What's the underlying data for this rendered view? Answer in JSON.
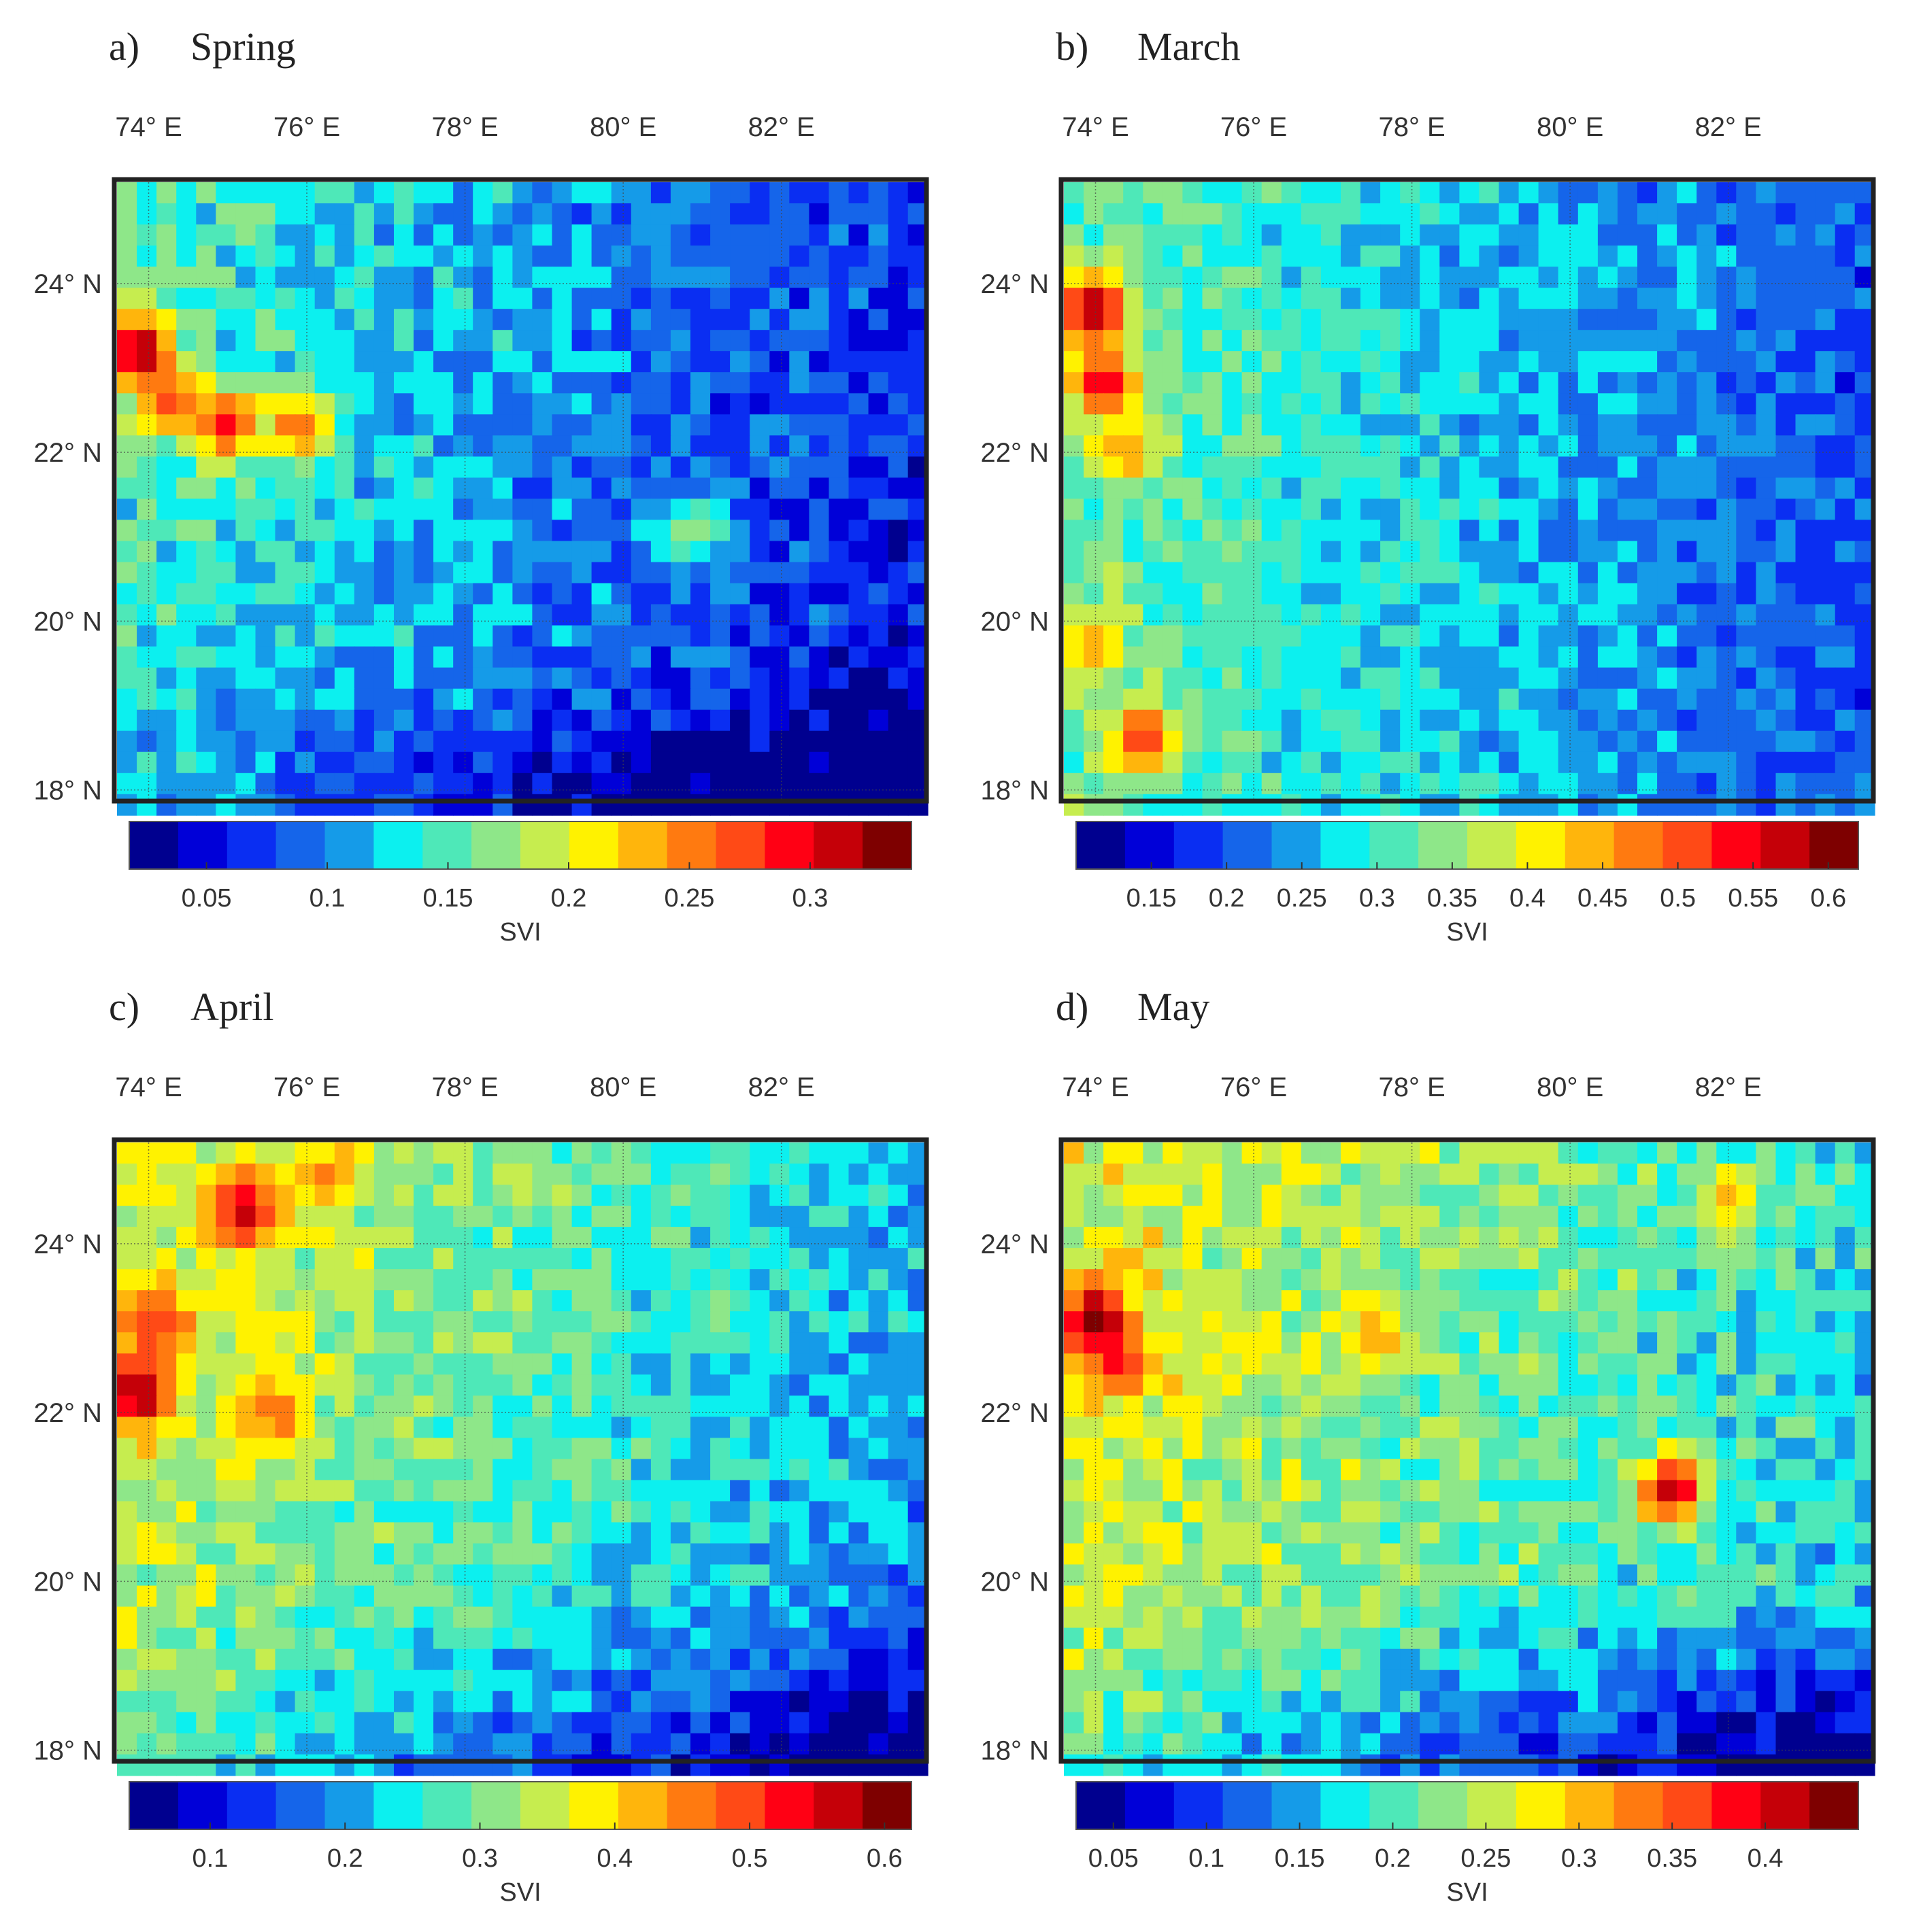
{
  "figure": {
    "colorbar_colors": [
      "#00008f",
      "#0000d8",
      "#0a2ef2",
      "#1565ea",
      "#159be8",
      "#0cf0ef",
      "#4ee8b8",
      "#8ee789",
      "#c6ed4f",
      "#fff200",
      "#ffb50c",
      "#ff7a10",
      "#ff4a16",
      "#ff0014",
      "#c50008",
      "#7e0000"
    ]
  },
  "chart_data": [
    {
      "type": "heatmap",
      "panel_label": "a)",
      "title": "Spring",
      "x_ticks": [
        "74° E",
        "76° E",
        "78° E",
        "80° E",
        "82° E"
      ],
      "y_ticks": [
        "24° N",
        "22° N",
        "20° N",
        "18° N"
      ],
      "x_tick_values": [
        74,
        76,
        78,
        80,
        82
      ],
      "y_tick_values": [
        24,
        22,
        20,
        18
      ],
      "xlim": [
        73.6,
        83.8
      ],
      "ylim": [
        17.9,
        25.2
      ],
      "colorbar": {
        "label": "SVI",
        "ticks": [
          "0.05",
          "0.1",
          "0.15",
          "0.2",
          "0.25",
          "0.3"
        ],
        "tick_values": [
          0.05,
          0.1,
          0.15,
          0.2,
          0.25,
          0.3
        ],
        "range": [
          0.018,
          0.342
        ]
      },
      "grid_resolution_deg": 0.25,
      "field": {
        "base_west": 0.14,
        "base_east": 0.055,
        "north_bonus": 0.015,
        "south_penalty": 0.05,
        "noise": 0.03
      },
      "hotspots": [
        {
          "lon": 73.9,
          "lat": 23.2,
          "value": 0.34
        },
        {
          "lon": 74.3,
          "lat": 22.6,
          "value": 0.27
        },
        {
          "lon": 75.0,
          "lat": 22.3,
          "value": 0.29
        },
        {
          "lon": 75.9,
          "lat": 22.3,
          "value": 0.26
        },
        {
          "lon": 80.9,
          "lat": 21.1,
          "value": 0.18
        }
      ]
    },
    {
      "type": "heatmap",
      "panel_label": "b)",
      "title": "March",
      "x_ticks": [
        "74° E",
        "76° E",
        "78° E",
        "80° E",
        "82° E"
      ],
      "y_ticks": [
        "24° N",
        "22° N",
        "20° N",
        "18° N"
      ],
      "x_tick_values": [
        74,
        76,
        78,
        80,
        82
      ],
      "y_tick_values": [
        24,
        22,
        20,
        18
      ],
      "xlim": [
        73.6,
        83.8
      ],
      "ylim": [
        17.9,
        25.2
      ],
      "colorbar": {
        "label": "SVI",
        "ticks": [
          "0.15",
          "0.2",
          "0.25",
          "0.3",
          "0.35",
          "0.4",
          "0.45",
          "0.5",
          "0.55",
          "0.6"
        ],
        "tick_values": [
          0.15,
          0.2,
          0.25,
          0.3,
          0.35,
          0.4,
          0.45,
          0.5,
          0.55,
          0.6
        ],
        "range": [
          0.1,
          0.62
        ]
      },
      "grid_resolution_deg": 0.25,
      "field": {
        "base_west": 0.33,
        "base_east": 0.2,
        "north_bonus": 0.0,
        "south_penalty": 0.0,
        "noise": 0.04
      },
      "hotspots": [
        {
          "lon": 74.0,
          "lat": 23.7,
          "value": 0.6
        },
        {
          "lon": 74.1,
          "lat": 22.8,
          "value": 0.55
        },
        {
          "lon": 74.4,
          "lat": 22.0,
          "value": 0.45
        },
        {
          "lon": 74.0,
          "lat": 19.7,
          "value": 0.45
        },
        {
          "lon": 74.6,
          "lat": 18.6,
          "value": 0.52
        }
      ]
    },
    {
      "type": "heatmap",
      "panel_label": "c)",
      "title": "April",
      "x_ticks": [
        "74° E",
        "76° E",
        "78° E",
        "80° E",
        "82° E"
      ],
      "y_ticks": [
        "24° N",
        "22° N",
        "20° N",
        "18° N"
      ],
      "x_tick_values": [
        74,
        76,
        78,
        80,
        82
      ],
      "y_tick_values": [
        24,
        22,
        20,
        18
      ],
      "xlim": [
        73.6,
        83.8
      ],
      "ylim": [
        17.9,
        25.2
      ],
      "colorbar": {
        "label": "SVI",
        "ticks": [
          "0.1",
          "0.2",
          "0.3",
          "0.4",
          "0.5",
          "0.6"
        ],
        "tick_values": [
          0.1,
          0.2,
          0.3,
          0.4,
          0.5,
          0.6
        ],
        "range": [
          0.04,
          0.62
        ]
      },
      "grid_resolution_deg": 0.25,
      "field": {
        "base_west": 0.33,
        "base_east": 0.17,
        "north_bonus": 0.05,
        "south_penalty": 0.1,
        "noise": 0.05
      },
      "hotspots": [
        {
          "lon": 74.1,
          "lat": 23.0,
          "value": 0.5
        },
        {
          "lon": 73.9,
          "lat": 22.2,
          "value": 0.6
        },
        {
          "lon": 75.2,
          "lat": 24.4,
          "value": 0.58
        },
        {
          "lon": 75.6,
          "lat": 22.0,
          "value": 0.47
        },
        {
          "lon": 76.2,
          "lat": 24.8,
          "value": 0.44
        }
      ]
    },
    {
      "type": "heatmap",
      "panel_label": "d)",
      "title": "May",
      "x_ticks": [
        "74° E",
        "76° E",
        "78° E",
        "80° E",
        "82° E"
      ],
      "y_ticks": [
        "24° N",
        "22° N",
        "20° N",
        "18° N"
      ],
      "x_tick_values": [
        74,
        76,
        78,
        80,
        82
      ],
      "y_tick_values": [
        24,
        22,
        20,
        18
      ],
      "xlim": [
        73.6,
        83.8
      ],
      "ylim": [
        17.9,
        25.2
      ],
      "colorbar": {
        "label": "SVI",
        "ticks": [
          "0.05",
          "0.1",
          "0.15",
          "0.2",
          "0.25",
          "0.3",
          "0.35",
          "0.4"
        ],
        "tick_values": [
          0.05,
          0.1,
          0.15,
          0.2,
          0.25,
          0.3,
          0.35,
          0.4
        ],
        "range": [
          0.03,
          0.45
        ]
      },
      "grid_resolution_deg": 0.25,
      "field": {
        "base_west": 0.25,
        "base_east": 0.16,
        "north_bonus": 0.02,
        "south_penalty": 0.1,
        "noise": 0.04
      },
      "hotspots": [
        {
          "lon": 74.0,
          "lat": 23.1,
          "value": 0.45
        },
        {
          "lon": 74.3,
          "lat": 22.6,
          "value": 0.38
        },
        {
          "lon": 81.3,
          "lat": 21.1,
          "value": 0.42
        },
        {
          "lon": 77.5,
          "lat": 22.9,
          "value": 0.32
        },
        {
          "lon": 82.0,
          "lat": 24.5,
          "value": 0.31
        }
      ]
    }
  ]
}
